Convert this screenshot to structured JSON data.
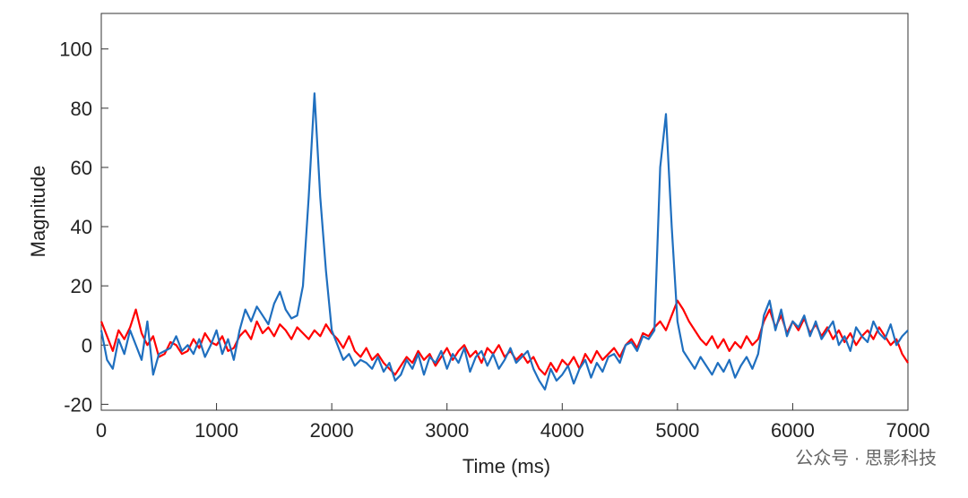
{
  "chart_data": {
    "type": "line",
    "xlabel": "Time (ms)",
    "ylabel": "Magnitude",
    "watermark": "公众号 · 思影科技",
    "xlim": [
      0,
      7000
    ],
    "ylim": [
      -22,
      112
    ],
    "xticks": [
      0,
      1000,
      2000,
      3000,
      4000,
      5000,
      6000,
      7000
    ],
    "yticks": [
      -20,
      0,
      20,
      40,
      60,
      80,
      100
    ],
    "grid": false,
    "x": [
      0,
      50,
      100,
      150,
      200,
      250,
      300,
      350,
      400,
      450,
      500,
      550,
      600,
      650,
      700,
      750,
      800,
      850,
      900,
      950,
      1000,
      1050,
      1100,
      1150,
      1200,
      1250,
      1300,
      1350,
      1400,
      1450,
      1500,
      1550,
      1600,
      1650,
      1700,
      1750,
      1800,
      1850,
      1900,
      1950,
      2000,
      2050,
      2100,
      2150,
      2200,
      2250,
      2300,
      2350,
      2400,
      2450,
      2500,
      2550,
      2600,
      2650,
      2700,
      2750,
      2800,
      2850,
      2900,
      2950,
      3000,
      3050,
      3100,
      3150,
      3200,
      3250,
      3300,
      3350,
      3400,
      3450,
      3500,
      3550,
      3600,
      3650,
      3700,
      3750,
      3800,
      3850,
      3900,
      3950,
      4000,
      4050,
      4100,
      4150,
      4200,
      4250,
      4300,
      4350,
      4400,
      4450,
      4500,
      4550,
      4600,
      4650,
      4700,
      4750,
      4800,
      4850,
      4900,
      4950,
      5000,
      5050,
      5100,
      5150,
      5200,
      5250,
      5300,
      5350,
      5400,
      5450,
      5500,
      5550,
      5600,
      5650,
      5700,
      5750,
      5800,
      5850,
      5900,
      5950,
      6000,
      6050,
      6100,
      6150,
      6200,
      6250,
      6300,
      6350,
      6400,
      6450,
      6500,
      6550,
      6600,
      6650,
      6700,
      6750,
      6800,
      6850,
      6900,
      6950,
      7000
    ],
    "series": [
      {
        "color": "#ff0000",
        "values": [
          8,
          3,
          -2,
          5,
          2,
          6,
          12,
          4,
          0,
          3,
          -4,
          -3,
          1,
          0,
          -3,
          -2,
          2,
          -1,
          4,
          1,
          0,
          3,
          -2,
          -1,
          3,
          5,
          2,
          8,
          4,
          6,
          3,
          7,
          5,
          2,
          6,
          4,
          2,
          5,
          3,
          7,
          4,
          2,
          -1,
          3,
          -2,
          -4,
          -1,
          -5,
          -3,
          -6,
          -8,
          -10,
          -7,
          -4,
          -6,
          -2,
          -5,
          -3,
          -7,
          -4,
          -1,
          -5,
          -2,
          0,
          -4,
          -2,
          -6,
          -1,
          -3,
          0,
          -4,
          -2,
          -5,
          -3,
          -6,
          -4,
          -8,
          -10,
          -6,
          -9,
          -5,
          -7,
          -4,
          -8,
          -3,
          -6,
          -2,
          -5,
          -3,
          -1,
          -4,
          0,
          2,
          -1,
          4,
          3,
          6,
          8,
          5,
          10,
          15,
          12,
          8,
          5,
          2,
          0,
          3,
          -1,
          2,
          -2,
          1,
          -1,
          3,
          0,
          2,
          8,
          12,
          6,
          10,
          4,
          8,
          5,
          9,
          4,
          7,
          3,
          6,
          2,
          5,
          1,
          4,
          0,
          3,
          5,
          2,
          6,
          3,
          0,
          2,
          -3,
          -6
        ]
      },
      {
        "color": "#1f6fbf",
        "values": [
          5,
          -5,
          -8,
          2,
          -3,
          5,
          0,
          -5,
          8,
          -10,
          -3,
          -2,
          -1,
          3,
          -2,
          0,
          -3,
          2,
          -4,
          0,
          5,
          -3,
          2,
          -5,
          5,
          12,
          8,
          13,
          10,
          7,
          14,
          18,
          12,
          9,
          10,
          20,
          50,
          85,
          50,
          25,
          5,
          0,
          -5,
          -3,
          -7,
          -5,
          -6,
          -8,
          -4,
          -9,
          -6,
          -12,
          -10,
          -5,
          -8,
          -3,
          -10,
          -4,
          -6,
          -2,
          -8,
          -3,
          -6,
          -1,
          -9,
          -4,
          -2,
          -7,
          -3,
          -8,
          -5,
          -1,
          -6,
          -4,
          -2,
          -8,
          -12,
          -15,
          -8,
          -12,
          -10,
          -7,
          -13,
          -8,
          -5,
          -11,
          -6,
          -9,
          -4,
          -3,
          -6,
          0,
          1,
          -2,
          3,
          2,
          5,
          60,
          78,
          40,
          8,
          -2,
          -5,
          -8,
          -4,
          -7,
          -10,
          -6,
          -9,
          -5,
          -11,
          -7,
          -4,
          -8,
          -3,
          10,
          15,
          5,
          12,
          3,
          8,
          6,
          10,
          3,
          8,
          2,
          5,
          8,
          0,
          3,
          -2,
          6,
          3,
          1,
          8,
          4,
          2,
          7,
          0,
          3,
          5
        ]
      }
    ]
  }
}
